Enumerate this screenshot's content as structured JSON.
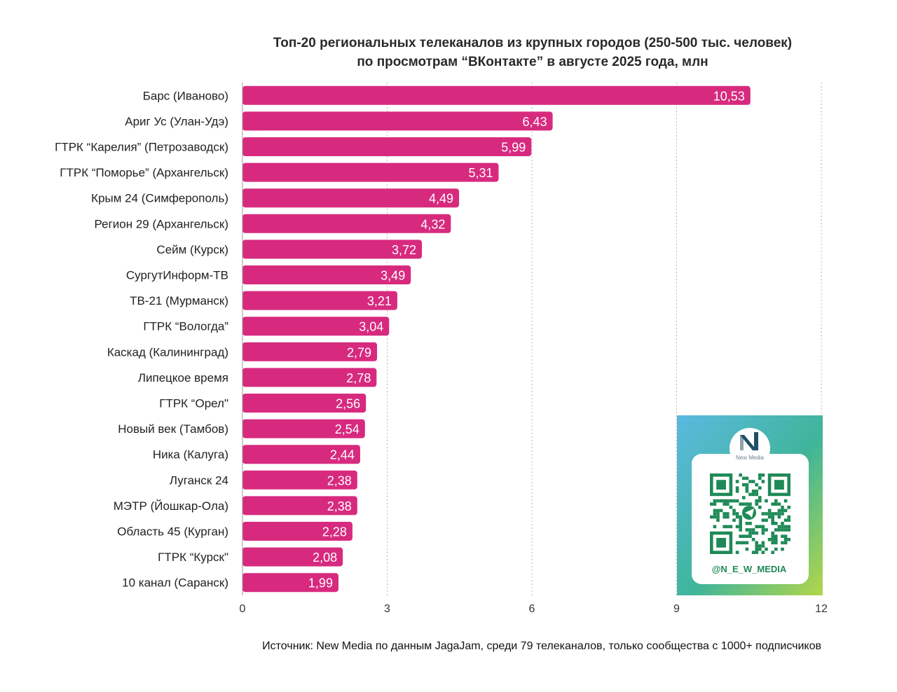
{
  "chart_data": {
    "type": "bar",
    "orientation": "horizontal",
    "title": [
      "Топ-20 региональных телеканалов из крупных городов (250-500 тыс. человек)",
      "по просмотрам “ВКонтакте” в августе 2025 года, млн"
    ],
    "categories": [
      "Барс (Иваново)",
      "Ариг Ус (Улан-Удэ)",
      "ГТРК “Карелия” (Петрозаводск)",
      "ГТРК “Поморье” (Архангельск)",
      "Крым 24 (Симферополь)",
      "Регион 29 (Архангельск)",
      "Сейм (Курск)",
      "СургутИнформ-ТВ",
      "ТВ-21 (Мурманск)",
      "ГТРК “Вологда”",
      "Каскад (Калининград)",
      "Липецкое время",
      "ГТРК “Орел\"",
      "Новый век (Тамбов)",
      "Ника (Калуга)",
      "Луганск 24",
      "МЭТР (Йошкар-Ола)",
      "Область 45 (Курган)",
      "ГТРК “Курск\"",
      "10 канал (Саранск)"
    ],
    "values": [
      10.53,
      6.43,
      5.99,
      5.31,
      4.49,
      4.32,
      3.72,
      3.49,
      3.21,
      3.04,
      2.79,
      2.78,
      2.56,
      2.54,
      2.44,
      2.38,
      2.38,
      2.28,
      2.08,
      1.99
    ],
    "value_labels": [
      "10,53",
      "6,43",
      "5,99",
      "5,31",
      "4,49",
      "4,32",
      "3,72",
      "3,49",
      "3,21",
      "3,04",
      "2,79",
      "2,78",
      "2,56",
      "2,54",
      "2,44",
      "2,38",
      "2,38",
      "2,28",
      "2,08",
      "1,99"
    ],
    "xlim": [
      0,
      12
    ],
    "xticks": [
      0,
      3,
      6,
      9,
      12
    ],
    "xtick_labels": [
      "0",
      "3",
      "6",
      "9",
      "12"
    ],
    "grid": "vertical-dotted",
    "bar_color": "#d72a7f",
    "xlabel": "",
    "ylabel": ""
  },
  "source_note": "Источник: New Media по данным JagaJam, среди 79 телеканалов, только сообщества с 1000+ подписчиков",
  "qr_card": {
    "logo_letter": "N",
    "logo_text": "New Media",
    "handle": "@N_E_W_MEDIA",
    "icon": "telegram-icon"
  },
  "colors": {
    "bar": "#d72a7f",
    "qr_green": "#1f8a57",
    "qr_bg_from": "#5bb9e0",
    "qr_bg_to": "#a9d44a"
  }
}
